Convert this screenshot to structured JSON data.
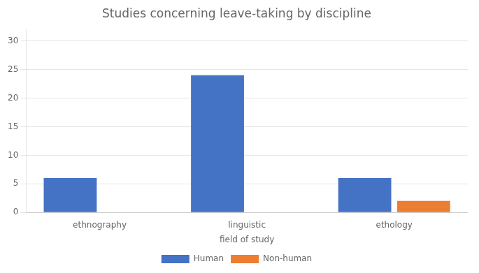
{
  "chart_data": {
    "type": "bar",
    "title": "Studies concerning leave-taking by discipline",
    "xlabel": "field of study",
    "categories": [
      "ethnography",
      "linguistic",
      "ethology"
    ],
    "series": [
      {
        "name": "Human",
        "color": "#4472C4",
        "values": [
          6,
          24,
          6
        ]
      },
      {
        "name": "Non-human",
        "color": "#ED7D31",
        "values": [
          0,
          0,
          2
        ]
      }
    ],
    "ylim": [
      0,
      32
    ],
    "yticks": [
      0,
      5,
      10,
      15,
      20,
      25,
      30
    ],
    "grid": true,
    "legend": "bottom"
  }
}
